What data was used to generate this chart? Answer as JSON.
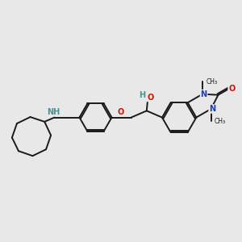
{
  "bg_color": "#e8e8e8",
  "bond_color": "#1a1a1a",
  "nitrogen_color": "#1a3faa",
  "oxygen_color": "#cc1100",
  "nh_color": "#4a9090",
  "line_width": 1.4,
  "fig_width": 3.0,
  "fig_height": 3.0,
  "dpi": 100,
  "xlim": [
    0,
    10
  ],
  "ylim": [
    0,
    10
  ]
}
